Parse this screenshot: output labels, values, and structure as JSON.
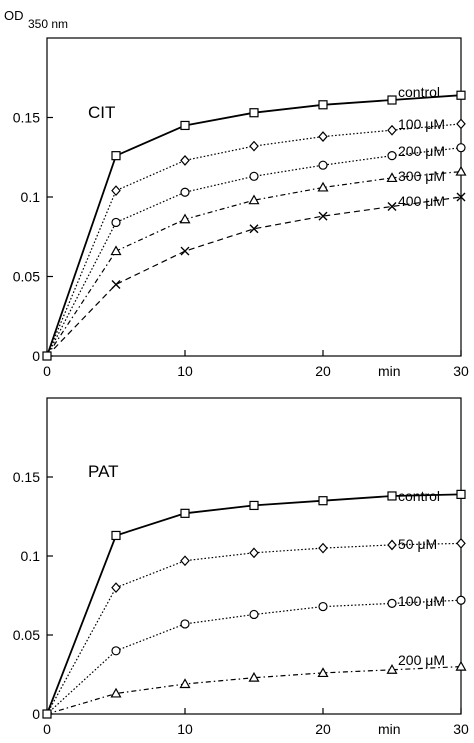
{
  "figure": {
    "ylabel_main": "OD",
    "ylabel_sub": "350 nm"
  },
  "chart_data": [
    {
      "type": "line",
      "title": "CIT",
      "xunit": "min",
      "x": [
        0,
        5,
        10,
        15,
        20,
        25,
        30
      ],
      "xlim": [
        0,
        30
      ],
      "ylim": [
        0,
        0.2
      ],
      "xticks": [
        "0",
        "10",
        "20",
        "30"
      ],
      "yticks": [
        "0",
        "0.05",
        "0.1",
        "0.15"
      ],
      "grid": false,
      "series": [
        {
          "name": "control",
          "marker": "square",
          "dash": "solid",
          "values": [
            0,
            0.126,
            0.145,
            0.153,
            0.158,
            0.161,
            0.164
          ]
        },
        {
          "name": "100 μM",
          "marker": "diamond",
          "dash": "dotted",
          "values": [
            0,
            0.104,
            0.123,
            0.132,
            0.138,
            0.142,
            0.146
          ]
        },
        {
          "name": "200 μM",
          "marker": "circle",
          "dash": "dotted",
          "values": [
            0,
            0.084,
            0.103,
            0.113,
            0.12,
            0.126,
            0.131
          ]
        },
        {
          "name": "300 μM",
          "marker": "triangle",
          "dash": "dashdot",
          "values": [
            0,
            0.066,
            0.086,
            0.098,
            0.106,
            0.112,
            0.116
          ]
        },
        {
          "name": "400 μM",
          "marker": "x",
          "dash": "dashed",
          "values": [
            0,
            0.045,
            0.066,
            0.08,
            0.088,
            0.094,
            0.1
          ]
        }
      ]
    },
    {
      "type": "line",
      "title": "PAT",
      "xunit": "min",
      "x": [
        0,
        5,
        10,
        15,
        20,
        25,
        30
      ],
      "xlim": [
        0,
        30
      ],
      "ylim": [
        0,
        0.2
      ],
      "xticks": [
        "0",
        "10",
        "20",
        "30"
      ],
      "yticks": [
        "0",
        "0.05",
        "0.1",
        "0.15"
      ],
      "grid": false,
      "series": [
        {
          "name": "control",
          "marker": "square",
          "dash": "solid",
          "values": [
            0,
            0.113,
            0.127,
            0.132,
            0.135,
            0.138,
            0.139
          ]
        },
        {
          "name": "50 μM",
          "marker": "diamond",
          "dash": "dotted",
          "values": [
            0,
            0.08,
            0.097,
            0.102,
            0.105,
            0.107,
            0.108
          ]
        },
        {
          "name": "100 μM",
          "marker": "circle",
          "dash": "dotted",
          "values": [
            0,
            0.04,
            0.057,
            0.063,
            0.068,
            0.07,
            0.072
          ]
        },
        {
          "name": "200 μM",
          "marker": "triangle",
          "dash": "dashdot",
          "values": [
            0,
            0.013,
            0.019,
            0.023,
            0.026,
            0.028,
            0.03
          ]
        }
      ]
    }
  ]
}
